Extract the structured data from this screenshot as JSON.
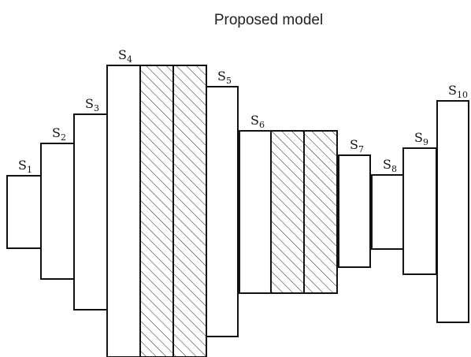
{
  "title": "Proposed model",
  "segments": [
    {
      "base": "S",
      "sub": "1",
      "hatched": false
    },
    {
      "base": "S",
      "sub": "2",
      "hatched": false
    },
    {
      "base": "S",
      "sub": "3",
      "hatched": false
    },
    {
      "base": "S",
      "sub": "4",
      "hatched": false
    },
    {
      "base": "",
      "sub": "",
      "hatched": true
    },
    {
      "base": "",
      "sub": "",
      "hatched": true
    },
    {
      "base": "S",
      "sub": "5",
      "hatched": false
    },
    {
      "base": "S",
      "sub": "6",
      "hatched": false
    },
    {
      "base": "",
      "sub": "",
      "hatched": true
    },
    {
      "base": "",
      "sub": "",
      "hatched": true
    },
    {
      "base": "S",
      "sub": "7",
      "hatched": false
    },
    {
      "base": "S",
      "sub": "8",
      "hatched": false
    },
    {
      "base": "S",
      "sub": "9",
      "hatched": false
    },
    {
      "base": "S",
      "sub": "10",
      "hatched": false
    }
  ]
}
